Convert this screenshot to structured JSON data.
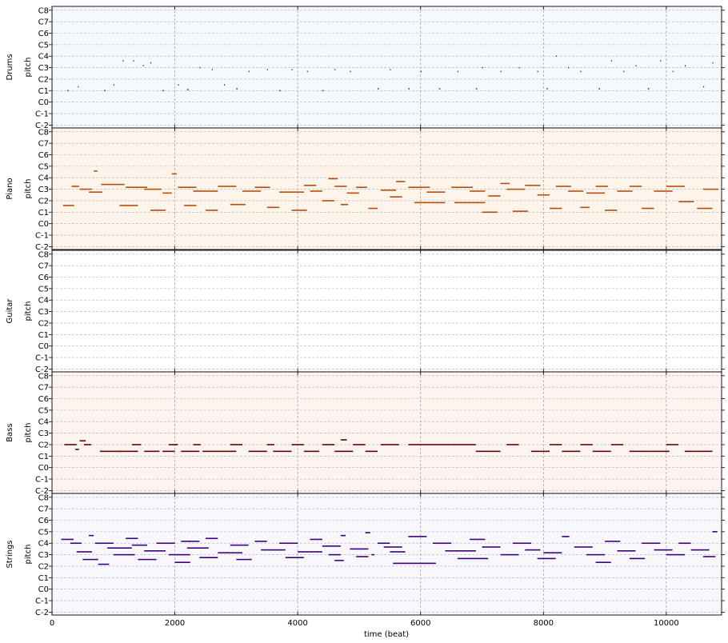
{
  "chart_data": {
    "type": "pianoroll",
    "xlabel": "time (beat)",
    "ylabel": "pitch",
    "xlim": [
      0,
      10900
    ],
    "ylim": [
      0,
      127
    ],
    "x_ticks": [
      0,
      2000,
      4000,
      6000,
      8000,
      10000
    ],
    "x_tick_labels": [
      "0",
      "2000",
      "4000",
      "6000",
      "8000",
      "10000"
    ],
    "y_ticks": [
      0,
      12,
      24,
      36,
      48,
      60,
      72,
      84,
      96,
      108,
      120
    ],
    "y_tick_labels": [
      "C-2",
      "C-1",
      "C0",
      "C1",
      "C2",
      "C3",
      "C4",
      "C5",
      "C6",
      "C7",
      "C8"
    ],
    "grid": true,
    "tracks": [
      {
        "name": "Drums",
        "bg": "#f5f9fd",
        "note_color": "#1f3f6e",
        "segments": [
          [
            250,
            36,
            20
          ],
          [
            420,
            40,
            15
          ],
          [
            850,
            36,
            20
          ],
          [
            1000,
            42,
            15
          ],
          [
            1150,
            67,
            15
          ],
          [
            1320,
            67,
            15
          ],
          [
            1480,
            62,
            15
          ],
          [
            1600,
            65,
            15
          ],
          [
            1800,
            36,
            20
          ],
          [
            2050,
            42,
            15
          ],
          [
            2200,
            37,
            20
          ],
          [
            2400,
            60,
            15
          ],
          [
            2600,
            58,
            15
          ],
          [
            2800,
            42,
            15
          ],
          [
            3000,
            38,
            20
          ],
          [
            3200,
            56,
            15
          ],
          [
            3500,
            58,
            15
          ],
          [
            3700,
            36,
            20
          ],
          [
            3900,
            58,
            15
          ],
          [
            4150,
            56,
            15
          ],
          [
            4400,
            36,
            20
          ],
          [
            4600,
            58,
            15
          ],
          [
            4850,
            56,
            15
          ],
          [
            5300,
            38,
            20
          ],
          [
            5500,
            58,
            15
          ],
          [
            5800,
            38,
            20
          ],
          [
            6000,
            56,
            15
          ],
          [
            6300,
            38,
            20
          ],
          [
            6600,
            56,
            15
          ],
          [
            6900,
            38,
            20
          ],
          [
            7000,
            60,
            15
          ],
          [
            7300,
            56,
            15
          ],
          [
            7600,
            60,
            15
          ],
          [
            7900,
            56,
            15
          ],
          [
            8050,
            38,
            20
          ],
          [
            8200,
            72,
            15
          ],
          [
            8400,
            60,
            15
          ],
          [
            8600,
            56,
            15
          ],
          [
            8900,
            38,
            20
          ],
          [
            9100,
            67,
            15
          ],
          [
            9300,
            56,
            15
          ],
          [
            9500,
            62,
            15
          ],
          [
            9700,
            38,
            20
          ],
          [
            9900,
            67,
            15
          ],
          [
            10100,
            56,
            15
          ],
          [
            10300,
            62,
            15
          ],
          [
            10600,
            40,
            15
          ],
          [
            10750,
            65,
            15
          ]
        ]
      },
      {
        "name": "Piano",
        "bg": "#fef4e9",
        "note_color": "#b54f0b",
        "segments": [
          [
            180,
            43,
            180
          ],
          [
            320,
            63,
            120
          ],
          [
            450,
            60,
            200
          ],
          [
            600,
            57,
            220
          ],
          [
            680,
            79,
            60
          ],
          [
            800,
            65,
            380
          ],
          [
            1100,
            43,
            300
          ],
          [
            1200,
            62,
            350
          ],
          [
            1500,
            60,
            280
          ],
          [
            1600,
            38,
            250
          ],
          [
            1800,
            56,
            150
          ],
          [
            1950,
            76,
            80
          ],
          [
            2050,
            62,
            300
          ],
          [
            2150,
            43,
            200
          ],
          [
            2300,
            58,
            400
          ],
          [
            2500,
            38,
            200
          ],
          [
            2700,
            63,
            300
          ],
          [
            2900,
            44,
            250
          ],
          [
            3100,
            58,
            300
          ],
          [
            3300,
            62,
            250
          ],
          [
            3500,
            41,
            200
          ],
          [
            3700,
            57,
            400
          ],
          [
            3900,
            38,
            250
          ],
          [
            4100,
            64,
            200
          ],
          [
            4200,
            58,
            200
          ],
          [
            4400,
            48,
            200
          ],
          [
            4500,
            71,
            150
          ],
          [
            4600,
            63,
            200
          ],
          [
            4700,
            44,
            120
          ],
          [
            4800,
            56,
            200
          ],
          [
            4950,
            62,
            180
          ],
          [
            5150,
            40,
            150
          ],
          [
            5350,
            59,
            250
          ],
          [
            5500,
            52,
            200
          ],
          [
            5600,
            68,
            150
          ],
          [
            5800,
            62,
            350
          ],
          [
            5900,
            46,
            500
          ],
          [
            6100,
            57,
            300
          ],
          [
            6500,
            62,
            350
          ],
          [
            6550,
            46,
            500
          ],
          [
            6800,
            58,
            250
          ],
          [
            7000,
            36,
            250
          ],
          [
            7100,
            53,
            200
          ],
          [
            7300,
            66,
            150
          ],
          [
            7400,
            60,
            300
          ],
          [
            7500,
            37,
            250
          ],
          [
            7700,
            64,
            250
          ],
          [
            7900,
            54,
            200
          ],
          [
            8100,
            40,
            200
          ],
          [
            8200,
            63,
            250
          ],
          [
            8400,
            58,
            250
          ],
          [
            8600,
            41,
            150
          ],
          [
            8700,
            56,
            300
          ],
          [
            8850,
            63,
            200
          ],
          [
            9000,
            38,
            200
          ],
          [
            9200,
            58,
            250
          ],
          [
            9400,
            63,
            200
          ],
          [
            9600,
            40,
            200
          ],
          [
            9800,
            58,
            300
          ],
          [
            10000,
            63,
            300
          ],
          [
            10200,
            47,
            250
          ],
          [
            10500,
            40,
            250
          ],
          [
            10600,
            60,
            250
          ]
        ]
      },
      {
        "name": "Guitar",
        "bg": "#ffffff",
        "note_color": "#2f7a2f",
        "segments": []
      },
      {
        "name": "Bass",
        "bg": "#fef4ef",
        "note_color": "#67000d",
        "segments": [
          [
            200,
            48,
            200
          ],
          [
            380,
            43,
            60
          ],
          [
            450,
            52,
            100
          ],
          [
            520,
            48,
            120
          ],
          [
            780,
            41,
            350
          ],
          [
            1100,
            41,
            300
          ],
          [
            1300,
            48,
            150
          ],
          [
            1500,
            41,
            250
          ],
          [
            1800,
            41,
            200
          ],
          [
            1900,
            48,
            150
          ],
          [
            2100,
            41,
            300
          ],
          [
            2300,
            48,
            120
          ],
          [
            2450,
            41,
            350
          ],
          [
            2800,
            41,
            200
          ],
          [
            2900,
            48,
            200
          ],
          [
            3200,
            41,
            300
          ],
          [
            3500,
            48,
            120
          ],
          [
            3600,
            41,
            300
          ],
          [
            3900,
            48,
            200
          ],
          [
            4100,
            41,
            250
          ],
          [
            4400,
            48,
            200
          ],
          [
            4600,
            41,
            300
          ],
          [
            4700,
            53,
            100
          ],
          [
            4900,
            48,
            200
          ],
          [
            5100,
            41,
            200
          ],
          [
            5350,
            48,
            300
          ],
          [
            5800,
            48,
            700
          ],
          [
            6500,
            48,
            400
          ],
          [
            6900,
            41,
            400
          ],
          [
            7400,
            48,
            200
          ],
          [
            7800,
            41,
            300
          ],
          [
            8100,
            48,
            200
          ],
          [
            8300,
            41,
            300
          ],
          [
            8600,
            48,
            200
          ],
          [
            8800,
            41,
            300
          ],
          [
            9100,
            48,
            200
          ],
          [
            9400,
            41,
            300
          ],
          [
            9700,
            41,
            350
          ],
          [
            10000,
            48,
            200
          ],
          [
            10300,
            41,
            200
          ],
          [
            10500,
            41,
            250
          ]
        ]
      },
      {
        "name": "Strings",
        "bg": "#f7f7fc",
        "note_color": "#3f007d",
        "segments": [
          [
            150,
            76,
            200
          ],
          [
            300,
            72,
            180
          ],
          [
            400,
            63,
            250
          ],
          [
            500,
            55,
            250
          ],
          [
            600,
            80,
            80
          ],
          [
            700,
            72,
            300
          ],
          [
            750,
            50,
            180
          ],
          [
            900,
            67,
            400
          ],
          [
            1000,
            60,
            350
          ],
          [
            1200,
            77,
            200
          ],
          [
            1300,
            70,
            250
          ],
          [
            1400,
            55,
            300
          ],
          [
            1500,
            64,
            350
          ],
          [
            1700,
            72,
            300
          ],
          [
            1900,
            60,
            350
          ],
          [
            2000,
            52,
            250
          ],
          [
            2100,
            74,
            300
          ],
          [
            2200,
            67,
            350
          ],
          [
            2400,
            57,
            300
          ],
          [
            2500,
            77,
            200
          ],
          [
            2700,
            62,
            400
          ],
          [
            2900,
            70,
            300
          ],
          [
            3000,
            55,
            250
          ],
          [
            3300,
            74,
            200
          ],
          [
            3400,
            65,
            400
          ],
          [
            3700,
            72,
            300
          ],
          [
            3800,
            57,
            300
          ],
          [
            4000,
            63,
            400
          ],
          [
            4200,
            76,
            200
          ],
          [
            4400,
            69,
            300
          ],
          [
            4500,
            60,
            200
          ],
          [
            4600,
            54,
            150
          ],
          [
            4700,
            80,
            80
          ],
          [
            4850,
            66,
            300
          ],
          [
            4950,
            58,
            200
          ],
          [
            5100,
            83,
            80
          ],
          [
            5200,
            60,
            50
          ],
          [
            5300,
            72,
            200
          ],
          [
            5400,
            68,
            300
          ],
          [
            5500,
            63,
            250
          ],
          [
            5550,
            51,
            700
          ],
          [
            5800,
            79,
            300
          ],
          [
            6200,
            72,
            300
          ],
          [
            6400,
            64,
            500
          ],
          [
            6600,
            56,
            500
          ],
          [
            6800,
            76,
            250
          ],
          [
            7000,
            68,
            300
          ],
          [
            7300,
            60,
            300
          ],
          [
            7500,
            72,
            300
          ],
          [
            7700,
            65,
            250
          ],
          [
            7900,
            56,
            300
          ],
          [
            8000,
            62,
            300
          ],
          [
            8300,
            79,
            120
          ],
          [
            8500,
            68,
            300
          ],
          [
            8700,
            60,
            300
          ],
          [
            8850,
            52,
            250
          ],
          [
            9000,
            74,
            250
          ],
          [
            9200,
            64,
            300
          ],
          [
            9400,
            56,
            250
          ],
          [
            9600,
            72,
            300
          ],
          [
            9800,
            65,
            300
          ],
          [
            10000,
            60,
            300
          ],
          [
            10200,
            72,
            200
          ],
          [
            10400,
            65,
            300
          ],
          [
            10600,
            58,
            200
          ],
          [
            10750,
            84,
            80
          ]
        ]
      }
    ]
  }
}
